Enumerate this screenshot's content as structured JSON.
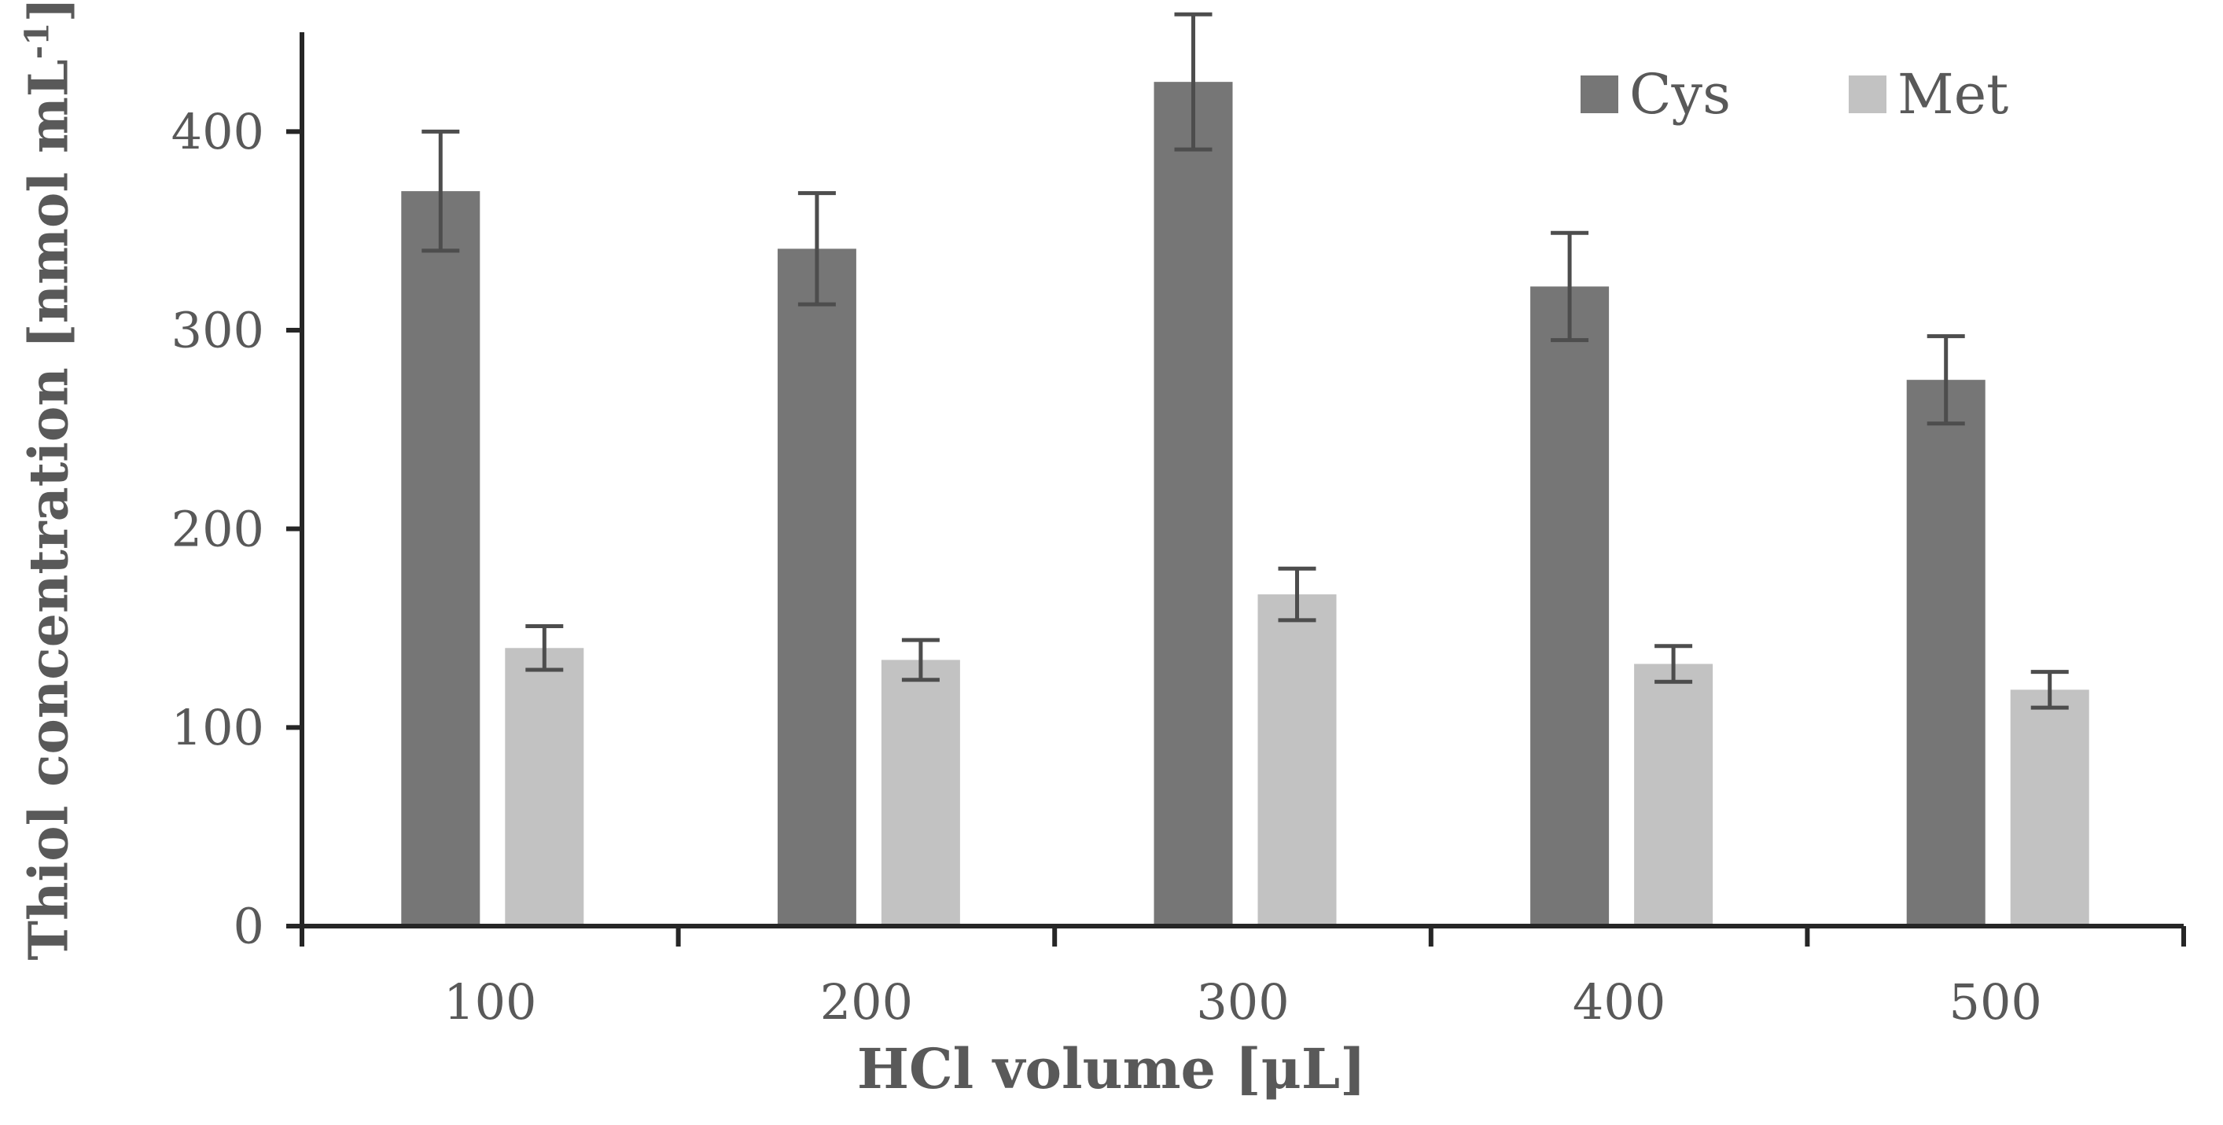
{
  "chart_data": {
    "type": "bar",
    "title": "",
    "xlabel": "HCl volume [μL]",
    "ylabel": "Thiol concentration [nmol mL⁻¹]",
    "ylabel_parts": {
      "main": "Thiol concentration [nmol mL",
      "sup": "-1",
      "close": "]"
    },
    "categories": [
      "100",
      "200",
      "300",
      "400",
      "500"
    ],
    "series": [
      {
        "name": "Cys",
        "color": "#767676",
        "values": [
          370,
          341,
          425,
          322,
          275
        ],
        "errors": [
          30,
          28,
          34,
          27,
          22
        ]
      },
      {
        "name": "Met",
        "color": "#c2c2c2",
        "values": [
          140,
          134,
          167,
          132,
          119
        ],
        "errors": [
          11,
          10,
          13,
          9,
          9
        ]
      }
    ],
    "ylim": [
      0,
      450
    ],
    "yticks": [
      0,
      100,
      200,
      300,
      400
    ],
    "grid": false,
    "legend_position": "top-right",
    "axis_color": "#262626",
    "error_bar_color": "#4d4d4d",
    "text_color": "#595959"
  }
}
